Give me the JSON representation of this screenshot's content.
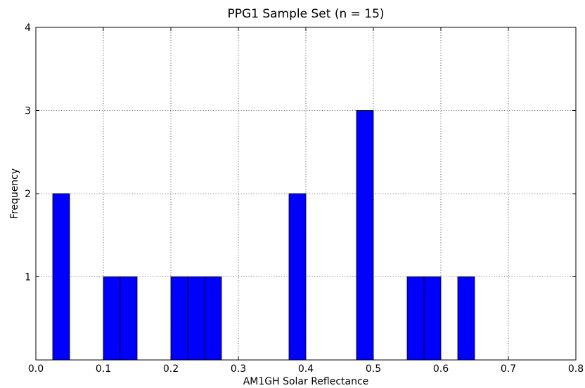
{
  "chart_data": {
    "type": "bar",
    "title": "PPG1 Sample Set (n = 15)",
    "xlabel": "AM1GH Solar Reflectance",
    "ylabel": "Frequency",
    "xlim": [
      0.0,
      0.8
    ],
    "ylim": [
      0,
      4
    ],
    "xticks": [
      "0.0",
      "0.1",
      "0.2",
      "0.3",
      "0.4",
      "0.5",
      "0.6",
      "0.7",
      "0.8"
    ],
    "yticks": [
      "1",
      "2",
      "3",
      "4"
    ],
    "grid": true,
    "bar_color": "#0000ff",
    "bin_width": 0.025,
    "bins": [
      {
        "x0": 0.025,
        "count": 2
      },
      {
        "x0": 0.1,
        "count": 1
      },
      {
        "x0": 0.125,
        "count": 1
      },
      {
        "x0": 0.2,
        "count": 1
      },
      {
        "x0": 0.225,
        "count": 1
      },
      {
        "x0": 0.25,
        "count": 1
      },
      {
        "x0": 0.375,
        "count": 2
      },
      {
        "x0": 0.475,
        "count": 3
      },
      {
        "x0": 0.55,
        "count": 1
      },
      {
        "x0": 0.575,
        "count": 1
      },
      {
        "x0": 0.625,
        "count": 1
      }
    ]
  }
}
